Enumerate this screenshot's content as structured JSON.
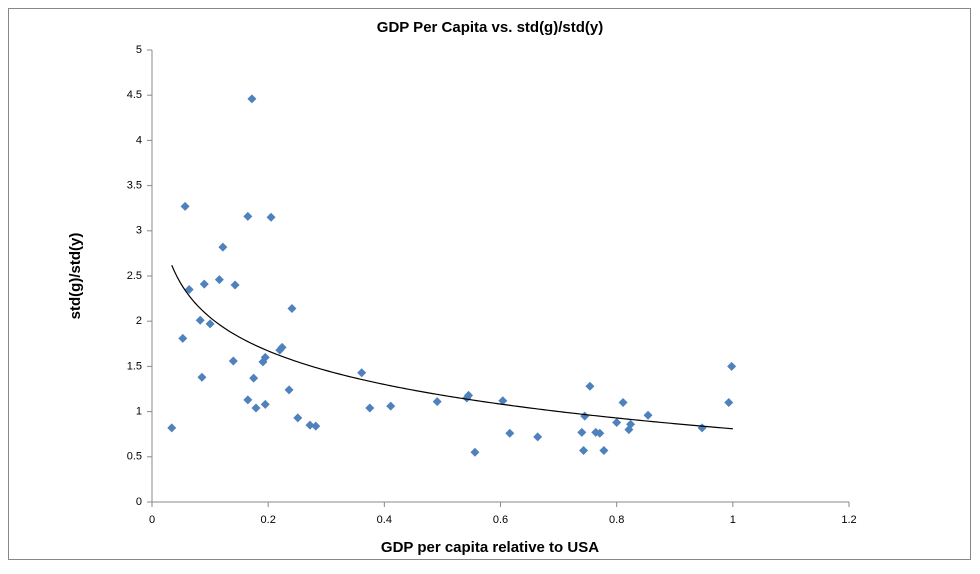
{
  "chart_data": {
    "type": "scatter",
    "title": "GDP Per Capita vs. std(g)/std(y)",
    "x_label": "GDP per capita relative to USA",
    "y_label": "std(g)/std(y)",
    "xlim": [
      0,
      1.2
    ],
    "xticks": [
      0,
      0.2,
      0.4,
      0.6,
      0.8,
      1,
      1.2
    ],
    "ylim": [
      0,
      5
    ],
    "yticks": [
      0,
      0.5,
      1,
      1.5,
      2,
      2.5,
      3,
      3.5,
      4,
      4.5,
      5
    ],
    "grid": false,
    "series": [
      {
        "color": "#4f81bd",
        "x": [
          0.034,
          0.057,
          0.064,
          0.053,
          0.083,
          0.09,
          0.1,
          0.086,
          0.116,
          0.122,
          0.143,
          0.14,
          0.165,
          0.172,
          0.165,
          0.179,
          0.175,
          0.205,
          0.191,
          0.195,
          0.195,
          0.241,
          0.22,
          0.224,
          0.236,
          0.251,
          0.272,
          0.282,
          0.361,
          0.375,
          0.411,
          0.491,
          0.542,
          0.545,
          0.556,
          0.604,
          0.616,
          0.664,
          0.74,
          0.743,
          0.745,
          0.754,
          0.764,
          0.771,
          0.778,
          0.8,
          0.811,
          0.821,
          0.824,
          0.854,
          0.947,
          0.993,
          0.998
        ],
        "values": [
          0.82,
          3.27,
          2.35,
          1.81,
          2.01,
          2.41,
          1.97,
          1.38,
          2.46,
          2.82,
          2.4,
          1.56,
          3.16,
          4.46,
          1.13,
          1.04,
          1.37,
          3.15,
          1.55,
          1.6,
          1.08,
          2.14,
          1.68,
          1.71,
          1.24,
          0.93,
          0.85,
          0.84,
          1.43,
          1.04,
          1.06,
          1.11,
          1.15,
          1.18,
          0.55,
          1.12,
          0.76,
          0.72,
          0.77,
          0.57,
          0.95,
          1.28,
          0.77,
          0.76,
          0.57,
          0.88,
          1.1,
          0.8,
          0.86,
          0.96,
          0.82,
          1.1,
          1.5
        ]
      }
    ],
    "trendline": {
      "kind": "logarithmic",
      "coefficients": [
        0.81,
        -0.535
      ],
      "xrange": [
        0.034,
        1
      ],
      "color": "#000000"
    }
  }
}
